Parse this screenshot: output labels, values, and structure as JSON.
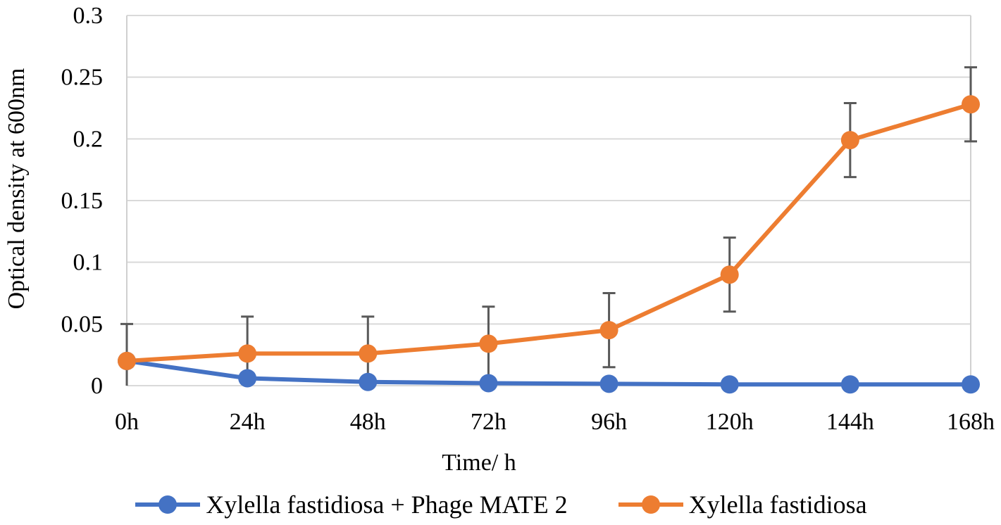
{
  "chart_data": {
    "type": "line",
    "title": "",
    "xlabel": "Time/ h",
    "ylabel": "Optical density at 600nm",
    "categories": [
      "0h",
      "24h",
      "48h",
      "72h",
      "96h",
      "120h",
      "144h",
      "168h"
    ],
    "ylim": [
      0,
      0.3
    ],
    "yticks": [
      "0",
      "0.05",
      "0.1",
      "0.15",
      "0.2",
      "0.25",
      "0.3"
    ],
    "ytick_values": [
      0,
      0.05,
      0.1,
      0.15,
      0.2,
      0.25,
      0.3
    ],
    "grid": true,
    "legend_position": "bottom",
    "series": [
      {
        "name": "Xylella fastidiosa + Phage MATE 2",
        "color": "#4472C4",
        "values": [
          0.02,
          0.006,
          0.003,
          0.002,
          0.0015,
          0.001,
          0.001,
          0.001
        ]
      },
      {
        "name": "Xylella fastidiosa",
        "color": "#ED7D31",
        "values": [
          0.02,
          0.026,
          0.026,
          0.034,
          0.045,
          0.09,
          0.199,
          0.228
        ],
        "error": [
          0.03,
          0.03,
          0.03,
          0.03,
          0.03,
          0.03,
          0.03,
          0.03
        ]
      }
    ]
  }
}
